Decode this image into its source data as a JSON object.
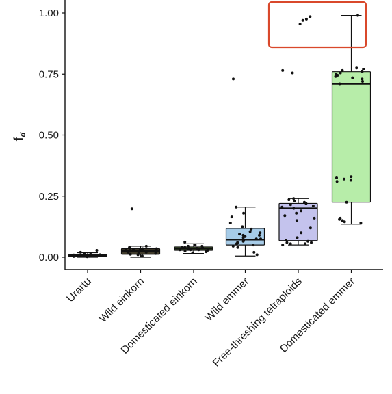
{
  "chart_data": {
    "type": "box",
    "ylabel_main": "f",
    "ylabel_sub": "d",
    "ylim": [
      0,
      1
    ],
    "yticks": [
      "0.00",
      "0.25",
      "0.50",
      "0.75",
      "1.00"
    ],
    "grid": false,
    "highlight_color": "#d9482b",
    "categories": [
      "Urartu",
      "Wild einkorn",
      "Domesticated einkorn",
      "Wild emmer",
      "Free-threshing tetraploids",
      "Domesticated emmer"
    ],
    "boxes": [
      {
        "q1": 0.003,
        "median": 0.006,
        "q3": 0.01,
        "whisker_low": 0.0,
        "whisker_high": 0.018,
        "fill": "#d9d9d9",
        "points": [
          0.002,
          0.004,
          0.005,
          0.006,
          0.007,
          0.008,
          0.009,
          0.01,
          0.012,
          0.015,
          0.02,
          0.028,
          0.005,
          0.003,
          0.006
        ]
      },
      {
        "q1": 0.012,
        "median": 0.025,
        "q3": 0.035,
        "whisker_low": 0.0,
        "whisker_high": 0.045,
        "fill": "#3f3a2a",
        "points": [
          0.198,
          0.045,
          0.04,
          0.035,
          0.032,
          0.03,
          0.028,
          0.025,
          0.022,
          0.02,
          0.018,
          0.015,
          0.012,
          0.01,
          0.005,
          0.02,
          0.03,
          0.025,
          0.035,
          0.015
        ]
      },
      {
        "q1": 0.028,
        "median": 0.035,
        "q3": 0.042,
        "whisker_low": 0.015,
        "whisker_high": 0.055,
        "fill": "#5b7f3a",
        "points": [
          0.062,
          0.05,
          0.045,
          0.04,
          0.038,
          0.035,
          0.033,
          0.03,
          0.028,
          0.025,
          0.022,
          0.018,
          0.04,
          0.035,
          0.03,
          0.045,
          0.03
        ]
      },
      {
        "q1": 0.05,
        "median": 0.072,
        "q3": 0.118,
        "whisker_low": 0.005,
        "whisker_high": 0.205,
        "fill": "#a7cce8",
        "points": [
          0.73,
          0.205,
          0.18,
          0.165,
          0.14,
          0.125,
          0.115,
          0.105,
          0.1,
          0.095,
          0.09,
          0.085,
          0.08,
          0.075,
          0.07,
          0.065,
          0.06,
          0.055,
          0.05,
          0.045,
          0.04,
          0.02,
          0.01,
          0.075,
          0.09
        ]
      },
      {
        "q1": 0.068,
        "median": 0.2,
        "q3": 0.22,
        "whisker_low": 0.05,
        "whisker_high": 0.24,
        "fill": "#c4c3ed",
        "points": [
          0.985,
          0.975,
          0.97,
          0.955,
          0.765,
          0.755,
          0.24,
          0.235,
          0.23,
          0.225,
          0.22,
          0.215,
          0.21,
          0.205,
          0.2,
          0.19,
          0.18,
          0.17,
          0.16,
          0.15,
          0.12,
          0.1,
          0.08,
          0.07,
          0.065,
          0.06,
          0.055,
          0.05,
          0.06,
          0.055
        ]
      },
      {
        "q1": 0.225,
        "median": 0.71,
        "q3": 0.76,
        "whisker_low": 0.135,
        "whisker_high": 0.99,
        "fill": "#b7eda9",
        "points": [
          0.99,
          0.775,
          0.77,
          0.765,
          0.76,
          0.755,
          0.75,
          0.745,
          0.74,
          0.735,
          0.73,
          0.72,
          0.71,
          0.33,
          0.325,
          0.32,
          0.315,
          0.31,
          0.225,
          0.15,
          0.145,
          0.14,
          0.155,
          0.16
        ]
      }
    ]
  }
}
